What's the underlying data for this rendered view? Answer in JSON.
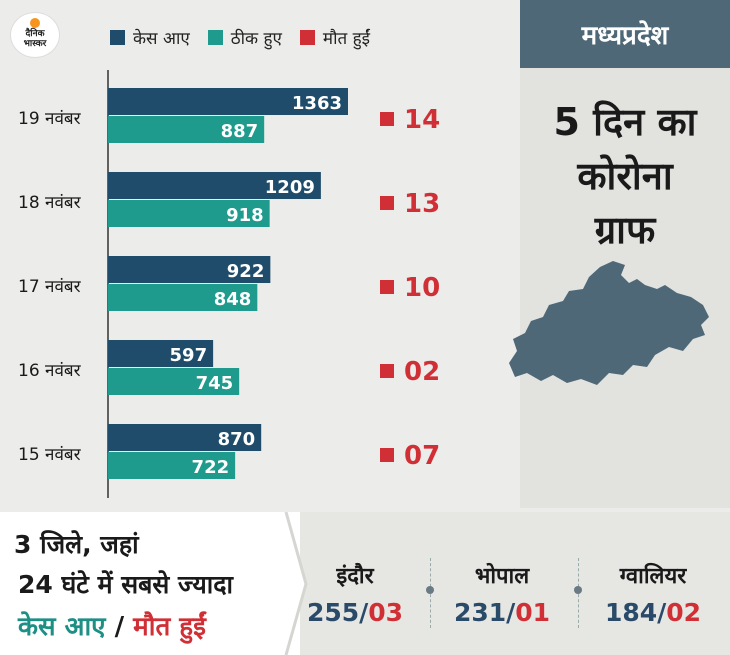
{
  "logo": {
    "line1": "दैनिक",
    "line2": "भास्कर"
  },
  "legend": [
    {
      "label": "केस आए",
      "color": "#1f4c6a"
    },
    {
      "label": "ठीक हुए",
      "color": "#1e9b8c"
    },
    {
      "label": "मौत हुईं",
      "color": "#d12f36"
    }
  ],
  "badge": "मध्यप्रदेश",
  "graph_title": {
    "line1": "5 दिन का",
    "line2": "कोरोना",
    "line3": "ग्राफ"
  },
  "chart_data": {
    "type": "bar",
    "categories": [
      "19 नवंबर",
      "18 नवंबर",
      "17 नवंबर",
      "16 नवंबर",
      "15 नवंबर"
    ],
    "series": [
      {
        "name": "केस आए",
        "values": [
          1363,
          1209,
          922,
          597,
          870
        ],
        "color": "#1f4c6a"
      },
      {
        "name": "ठीक हुए",
        "values": [
          887,
          918,
          848,
          745,
          722
        ],
        "color": "#1e9b8c"
      }
    ],
    "deaths": [
      "14",
      "13",
      "10",
      "02",
      "07"
    ],
    "deaths_color": "#d12f36",
    "xlim": [
      0,
      1400
    ]
  },
  "summary": {
    "line1": "3 जिले, जहां",
    "line2": "24 घंटे में सबसे ज्यादा",
    "cases_label": "केस आए",
    "slash": " / ",
    "deaths_label": "मौत हुईं"
  },
  "cities": [
    {
      "name": "इंदौर",
      "cases": "255",
      "deaths": "03"
    },
    {
      "name": "भोपाल",
      "cases": "231",
      "deaths": "01"
    },
    {
      "name": "ग्वालियर",
      "cases": "184",
      "deaths": "02"
    }
  ]
}
